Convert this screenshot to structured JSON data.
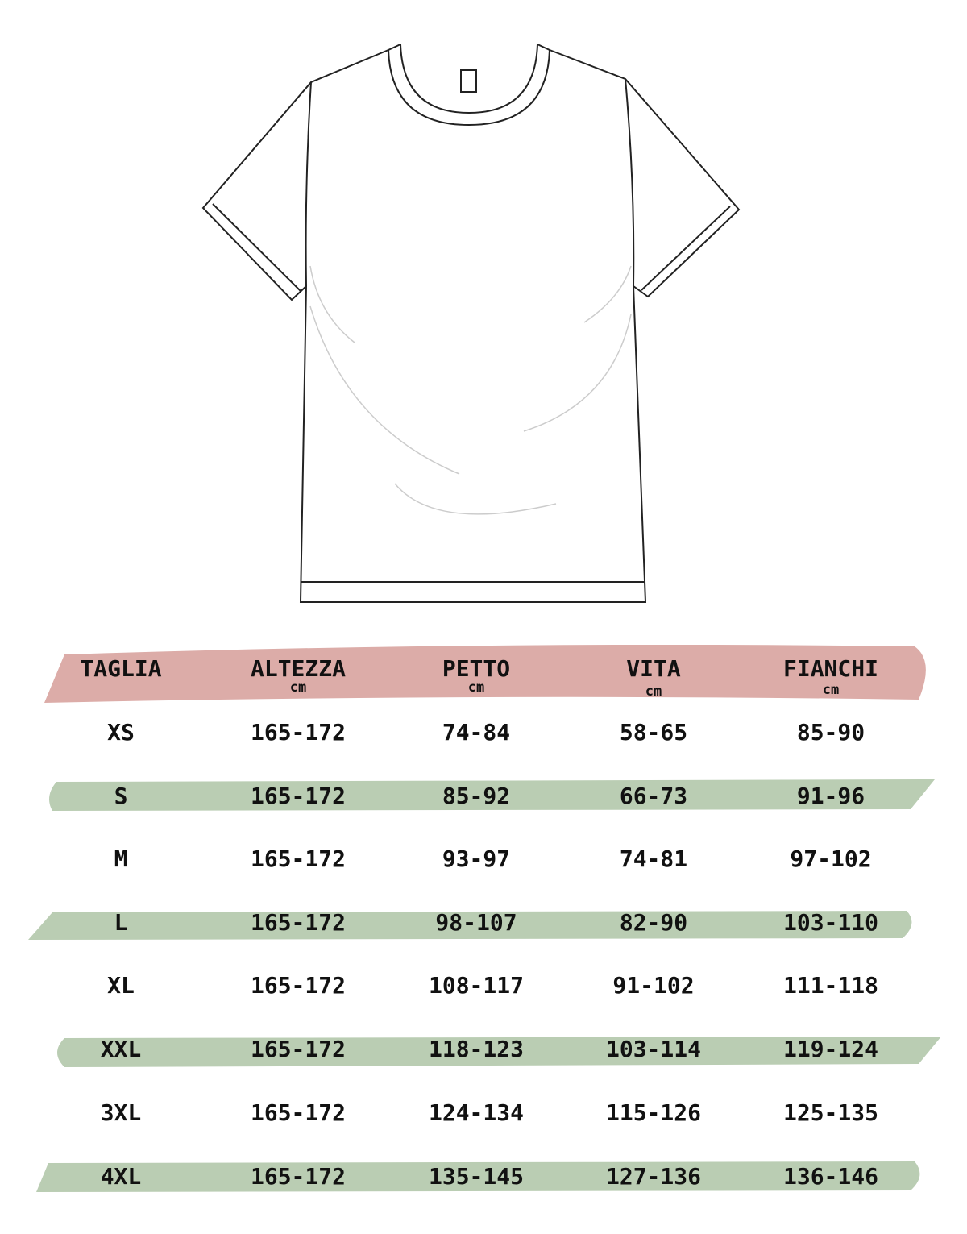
{
  "colors": {
    "header_band": "#dcaca8",
    "row_band": "#bacdb3",
    "text": "#111111"
  },
  "illustration": "t-shirt-outline",
  "table": {
    "headers": [
      {
        "label": "TAGLIA",
        "unit": ""
      },
      {
        "label": "ALTEZZA",
        "unit": "cm"
      },
      {
        "label": "PETTO",
        "unit": "cm"
      },
      {
        "label": "VITA",
        "unit": "cm"
      },
      {
        "label": "FIANCHI",
        "unit": "cm"
      }
    ],
    "rows": [
      [
        "XS",
        "165-172",
        "74-84",
        "58-65",
        "85-90"
      ],
      [
        "S",
        "165-172",
        "85-92",
        "66-73",
        "91-96"
      ],
      [
        "M",
        "165-172",
        "93-97",
        "74-81",
        "97-102"
      ],
      [
        "L",
        "165-172",
        "98-107",
        "82-90",
        "103-110"
      ],
      [
        "XL",
        "165-172",
        "108-117",
        "91-102",
        "111-118"
      ],
      [
        "XXL",
        "165-172",
        "118-123",
        "103-114",
        "119-124"
      ],
      [
        "3XL",
        "165-172",
        "124-134",
        "115-126",
        "125-135"
      ],
      [
        "4XL",
        "165-172",
        "135-145",
        "127-136",
        "136-146"
      ]
    ]
  }
}
